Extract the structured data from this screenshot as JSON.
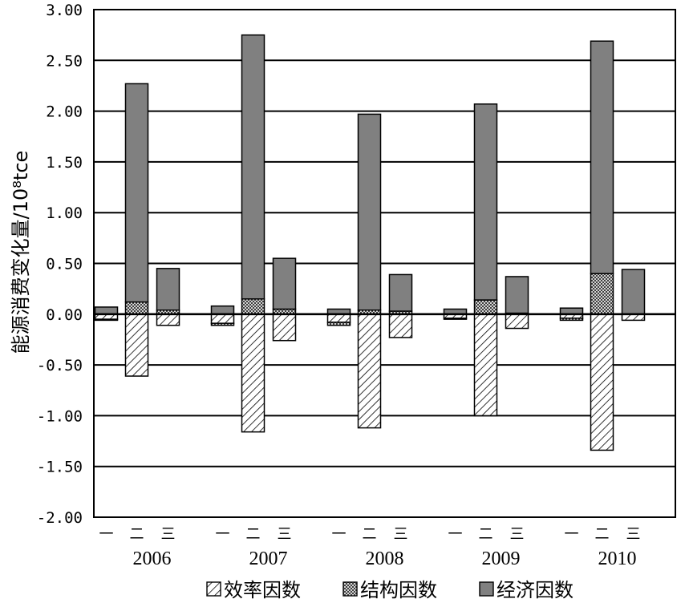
{
  "chart_data": {
    "type": "bar",
    "ylabel": "能源消费变化量/10⁸tce",
    "ylim": [
      -2.0,
      3.0
    ],
    "yticks": [
      "3.00",
      "2.50",
      "2.00",
      "1.50",
      "1.00",
      "0.50",
      "0.00",
      "-0.50",
      "-1.00",
      "-1.50",
      "-2.00"
    ],
    "grid": true,
    "legend_position": "bottom",
    "years": [
      "2006",
      "2007",
      "2008",
      "2009",
      "2010"
    ],
    "industries": [
      "一",
      "二",
      "三"
    ],
    "series": [
      {
        "name": "效率因数",
        "pattern": "diagonal-hatch",
        "values": [
          [
            -0.05,
            -0.61,
            -0.11
          ],
          [
            -0.09,
            -1.16,
            -0.26
          ],
          [
            -0.08,
            -1.12,
            -0.23
          ],
          [
            -0.04,
            -1.0,
            -0.14
          ],
          [
            -0.04,
            -1.34,
            -0.06
          ]
        ]
      },
      {
        "name": "结构因数",
        "pattern": "cross-hatch",
        "values": [
          [
            -0.01,
            0.12,
            0.04
          ],
          [
            -0.02,
            0.15,
            0.05
          ],
          [
            -0.03,
            0.04,
            0.03
          ],
          [
            -0.01,
            0.14,
            0.01
          ],
          [
            -0.02,
            0.4,
            0.0
          ]
        ]
      },
      {
        "name": "经济因数",
        "pattern": "solid",
        "color": "#808080",
        "values": [
          [
            0.07,
            2.15,
            0.41
          ],
          [
            0.08,
            2.6,
            0.5
          ],
          [
            0.05,
            1.93,
            0.36
          ],
          [
            0.05,
            1.93,
            0.36
          ],
          [
            0.06,
            2.29,
            0.44
          ]
        ]
      }
    ]
  }
}
